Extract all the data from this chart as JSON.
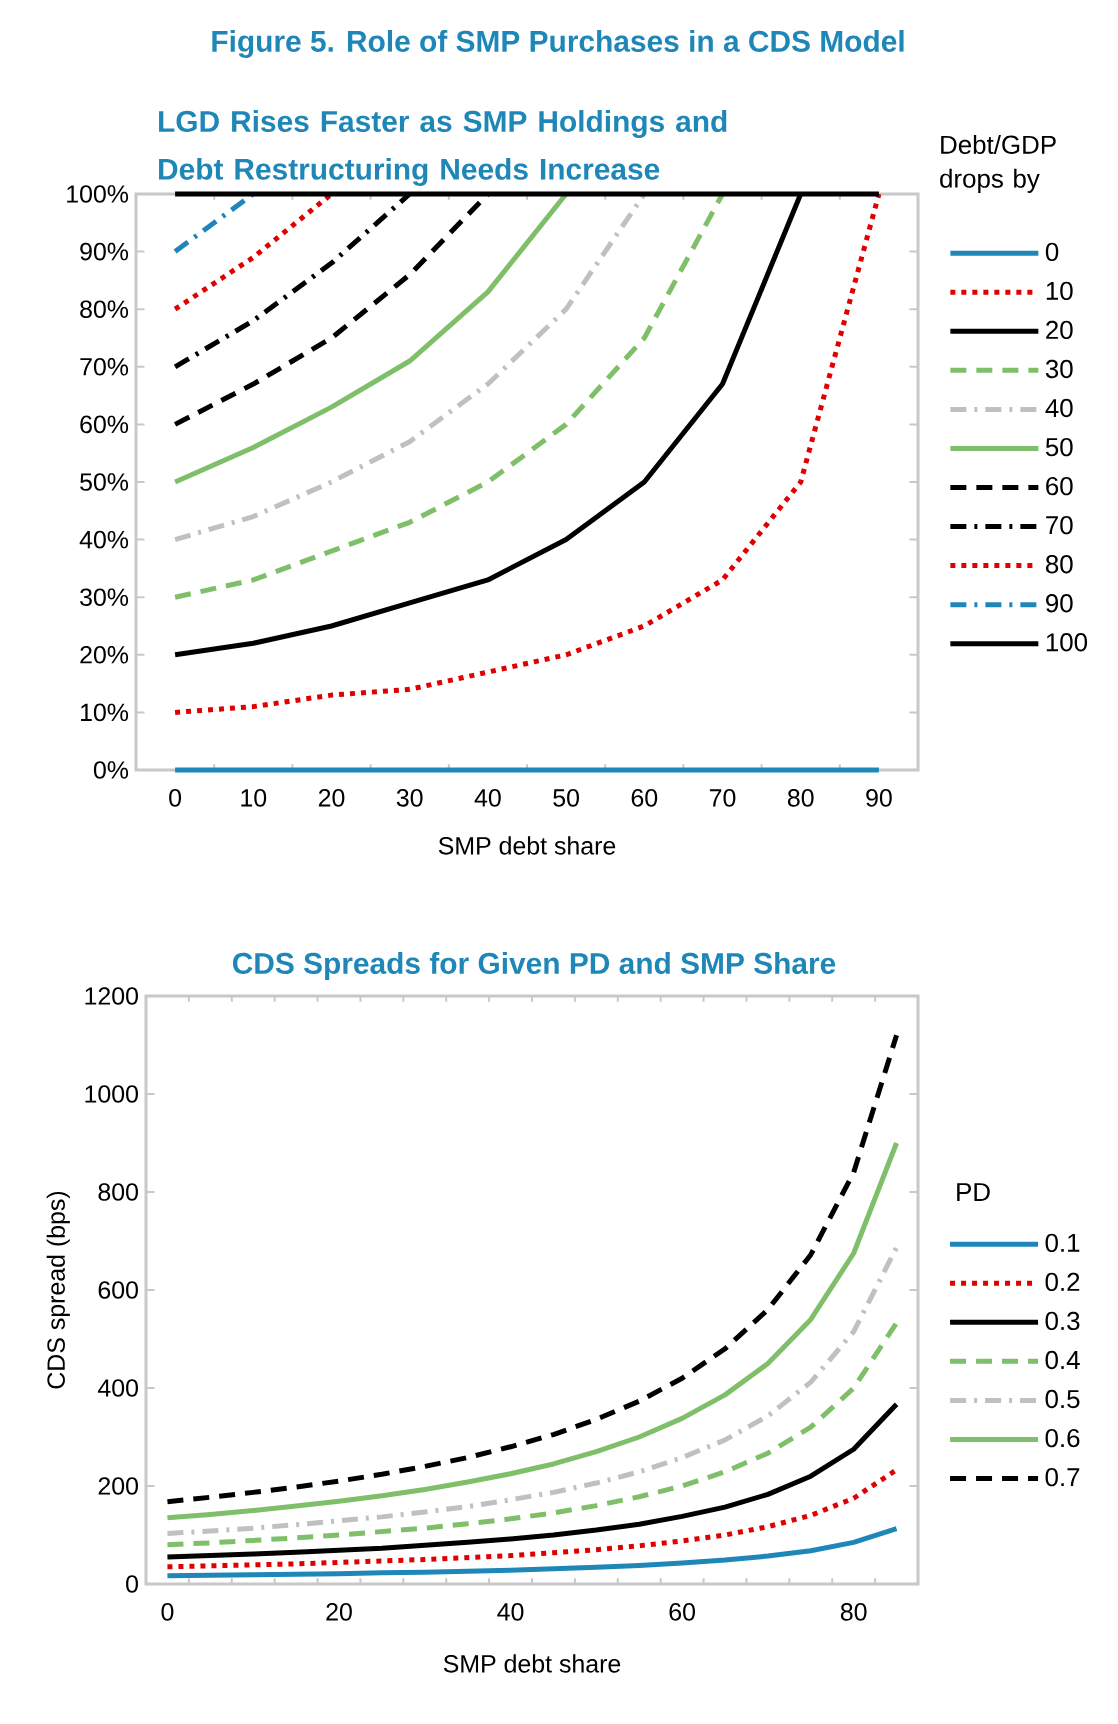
{
  "chart_data": [
    {
      "type": "line",
      "title": "Figure 5. Role of SMP Purchases in a CDS Model",
      "subtitle": "LGD Rises  Faster as SMP Holdings and Debt  Restructuring Needs Increase",
      "xlabel": "SMP debt share",
      "legend_title": "Debt/GDP drops by",
      "categories": [
        "0",
        "10",
        "20",
        "30",
        "40",
        "50",
        "60",
        "70",
        "80",
        "90"
      ],
      "ylim": [
        0,
        100
      ],
      "yticks": [
        {
          "value": 0,
          "label": "0%"
        },
        {
          "value": 10,
          "label": "10%"
        },
        {
          "value": 20,
          "label": "20%"
        },
        {
          "value": 30,
          "label": "30%"
        },
        {
          "value": 40,
          "label": "40%"
        },
        {
          "value": 50,
          "label": "50%"
        },
        {
          "value": 60,
          "label": "60%"
        },
        {
          "value": 70,
          "label": "70%"
        },
        {
          "value": 80,
          "label": "80%"
        },
        {
          "value": 90,
          "label": "90%"
        },
        {
          "value": 100,
          "label": "100%"
        }
      ],
      "legend": "right",
      "grid": false,
      "marker": "none",
      "series": [
        {
          "name": "0",
          "color": "#1f87b8",
          "line_style": "solid",
          "values": [
            0,
            0,
            0,
            0,
            0,
            0,
            0,
            0,
            0,
            0
          ]
        },
        {
          "name": "10",
          "color": "#e00000",
          "line_style": "dotted",
          "values": [
            10,
            11,
            13,
            14,
            17,
            20,
            25,
            33,
            50,
            100
          ]
        },
        {
          "name": "20",
          "color": "#000000",
          "line_style": "solid",
          "values": [
            20,
            22,
            25,
            29,
            33,
            40,
            50,
            67,
            100,
            null
          ]
        },
        {
          "name": "30",
          "color": "#7fbf6a",
          "line_style": "dashed",
          "values": [
            30,
            33,
            38,
            43,
            50,
            60,
            75,
            100,
            null,
            null
          ]
        },
        {
          "name": "40",
          "color": "#c0c0c0",
          "line_style": "dashdot",
          "values": [
            40,
            44,
            50,
            57,
            67,
            80,
            100,
            null,
            null,
            null
          ]
        },
        {
          "name": "50",
          "color": "#7fbf6a",
          "line_style": "solid",
          "values": [
            50,
            56,
            63,
            71,
            83,
            100,
            null,
            null,
            null,
            null
          ]
        },
        {
          "name": "60",
          "color": "#000000",
          "line_style": "dashed",
          "values": [
            60,
            67,
            75,
            86,
            100,
            null,
            null,
            null,
            null,
            null
          ]
        },
        {
          "name": "70",
          "color": "#000000",
          "line_style": "dashdot",
          "values": [
            70,
            78,
            88,
            100,
            null,
            null,
            null,
            null,
            null,
            null
          ]
        },
        {
          "name": "80",
          "color": "#e00000",
          "line_style": "dotted",
          "values": [
            80,
            89,
            100,
            null,
            null,
            null,
            null,
            null,
            null,
            null
          ]
        },
        {
          "name": "90",
          "color": "#1f87b8",
          "line_style": "dashdot",
          "values": [
            90,
            100,
            null,
            null,
            null,
            null,
            null,
            null,
            null,
            null
          ]
        },
        {
          "name": "100",
          "color": "#000000",
          "line_style": "solid",
          "values": [
            100,
            100,
            100,
            100,
            100,
            100,
            100,
            100,
            100,
            100
          ]
        }
      ]
    },
    {
      "type": "line",
      "title": "CDS Spreads  for Given PD and  SMP Share",
      "xlabel": "SMP debt share",
      "ylabel": "CDS spread (bps)",
      "legend_title": "PD",
      "x": [
        0,
        5,
        10,
        15,
        20,
        25,
        30,
        35,
        40,
        45,
        50,
        55,
        60,
        65,
        70,
        75,
        80,
        85
      ],
      "xlim": [
        -2.5,
        87.5
      ],
      "xticks": [
        0,
        20,
        40,
        60,
        80
      ],
      "ylim": [
        0,
        1200
      ],
      "yticks": [
        0,
        200,
        400,
        600,
        800,
        1000,
        1200
      ],
      "legend": "right",
      "grid": false,
      "marker": "none",
      "series": [
        {
          "name": "0.1",
          "color": "#1f87b8",
          "line_style": "solid",
          "values": [
            17,
            18,
            19,
            20,
            21,
            23,
            24,
            26,
            28,
            31,
            34,
            38,
            43,
            49,
            57,
            68,
            85,
            113
          ]
        },
        {
          "name": "0.2",
          "color": "#e00000",
          "line_style": "dotted",
          "values": [
            35,
            37,
            39,
            41,
            44,
            47,
            50,
            54,
            58,
            64,
            70,
            78,
            88,
            100,
            117,
            140,
            175,
            233
          ]
        },
        {
          "name": "0.3",
          "color": "#000000",
          "line_style": "solid",
          "values": [
            55,
            58,
            61,
            65,
            69,
            73,
            79,
            85,
            92,
            100,
            110,
            122,
            138,
            157,
            183,
            220,
            275,
            367
          ]
        },
        {
          "name": "0.4",
          "color": "#7fbf6a",
          "line_style": "dashed",
          "values": [
            80,
            84,
            89,
            94,
            100,
            107,
            114,
            123,
            133,
            145,
            160,
            178,
            200,
            229,
            267,
            320,
            400,
            533
          ]
        },
        {
          "name": "0.5",
          "color": "#c0c0c0",
          "line_style": "dashdot",
          "values": [
            103,
            108,
            114,
            121,
            129,
            137,
            147,
            158,
            172,
            187,
            206,
            229,
            258,
            294,
            343,
            412,
            515,
            687
          ]
        },
        {
          "name": "0.6",
          "color": "#7fbf6a",
          "line_style": "solid",
          "values": [
            135,
            142,
            150,
            159,
            169,
            180,
            193,
            208,
            225,
            245,
            270,
            300,
            338,
            386,
            450,
            540,
            675,
            900
          ]
        },
        {
          "name": "0.7",
          "color": "#000000",
          "line_style": "dashed",
          "values": [
            168,
            177,
            187,
            198,
            210,
            224,
            240,
            258,
            280,
            305,
            336,
            373,
            420,
            480,
            560,
            672,
            840,
            1120
          ]
        }
      ]
    }
  ]
}
